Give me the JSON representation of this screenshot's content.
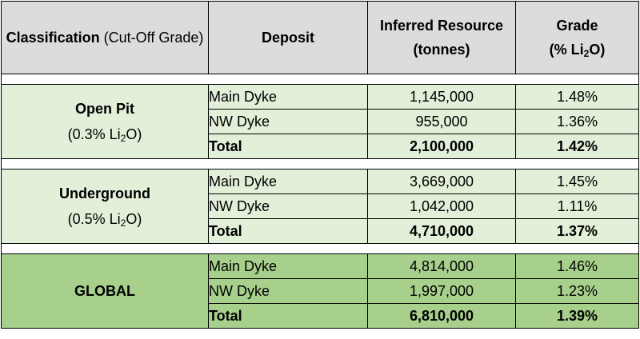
{
  "headers": {
    "classification": "Classification",
    "classification_note": "(Cut-Off Grade)",
    "deposit": "Deposit",
    "resource_line1": "Inferred Resource",
    "resource_line2": "(tonnes)",
    "grade_line1": "Grade",
    "grade_prefix": "(% Li",
    "grade_sub": "2",
    "grade_suffix": "O)"
  },
  "open_pit": {
    "title": "Open Pit",
    "cutoff_prefix": "(0.3% Li",
    "cutoff_sub": "2",
    "cutoff_suffix": "O)",
    "rows": [
      {
        "deposit": "Main Dyke",
        "tonnes": "1,145,000",
        "grade": "1.48%"
      },
      {
        "deposit": "NW Dyke",
        "tonnes": "955,000",
        "grade": "1.36%"
      },
      {
        "deposit": "Total",
        "tonnes": "2,100,000",
        "grade": "1.42%"
      }
    ]
  },
  "underground": {
    "title": "Underground",
    "cutoff_prefix": "(0.5% Li",
    "cutoff_sub": "2",
    "cutoff_suffix": "O)",
    "rows": [
      {
        "deposit": "Main Dyke",
        "tonnes": "3,669,000",
        "grade": "1.45%"
      },
      {
        "deposit": "NW Dyke",
        "tonnes": "1,042,000",
        "grade": "1.11%"
      },
      {
        "deposit": "Total",
        "tonnes": "4,710,000",
        "grade": "1.37%"
      }
    ]
  },
  "global": {
    "title": "GLOBAL",
    "rows": [
      {
        "deposit": "Main Dyke",
        "tonnes": "4,814,000",
        "grade": "1.46%"
      },
      {
        "deposit": "NW Dyke",
        "tonnes": "1,997,000",
        "grade": "1.23%"
      },
      {
        "deposit": "Total",
        "tonnes": "6,810,000",
        "grade": "1.39%"
      }
    ]
  },
  "colors": {
    "header_bg": "#dcdcdc",
    "group_light_bg": "#e2efd9",
    "group_strong_bg": "#a8d08d"
  }
}
